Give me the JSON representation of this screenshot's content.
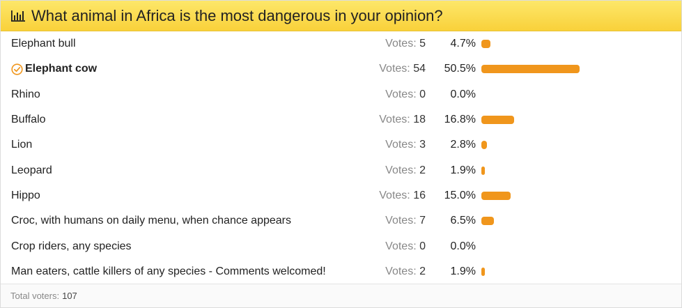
{
  "poll": {
    "title": "What animal in Africa is the most dangerous in your opinion?",
    "header_icon": "bar-chart-icon",
    "votes_label": "Votes:",
    "accent_color": "#f0961c",
    "header_color": "#fbd94a",
    "options": [
      {
        "label": "Elephant bull",
        "votes": "5",
        "percent": "4.7%",
        "fraction": 0.047,
        "selected": false
      },
      {
        "label": "Elephant cow",
        "votes": "54",
        "percent": "50.5%",
        "fraction": 0.505,
        "selected": true
      },
      {
        "label": "Rhino",
        "votes": "0",
        "percent": "0.0%",
        "fraction": 0.0,
        "selected": false
      },
      {
        "label": "Buffalo",
        "votes": "18",
        "percent": "16.8%",
        "fraction": 0.168,
        "selected": false
      },
      {
        "label": "Lion",
        "votes": "3",
        "percent": "2.8%",
        "fraction": 0.028,
        "selected": false
      },
      {
        "label": "Leopard",
        "votes": "2",
        "percent": "1.9%",
        "fraction": 0.019,
        "selected": false
      },
      {
        "label": "Hippo",
        "votes": "16",
        "percent": "15.0%",
        "fraction": 0.15,
        "selected": false
      },
      {
        "label": "Croc, with humans on daily menu, when chance appears",
        "votes": "7",
        "percent": "6.5%",
        "fraction": 0.065,
        "selected": false
      },
      {
        "label": "Crop riders, any species",
        "votes": "0",
        "percent": "0.0%",
        "fraction": 0.0,
        "selected": false
      },
      {
        "label": "Man eaters, cattle killers of any species - Comments welcomed!",
        "votes": "2",
        "percent": "1.9%",
        "fraction": 0.019,
        "selected": false
      }
    ],
    "footer": {
      "total_label": "Total voters:",
      "total_value": "107"
    }
  }
}
